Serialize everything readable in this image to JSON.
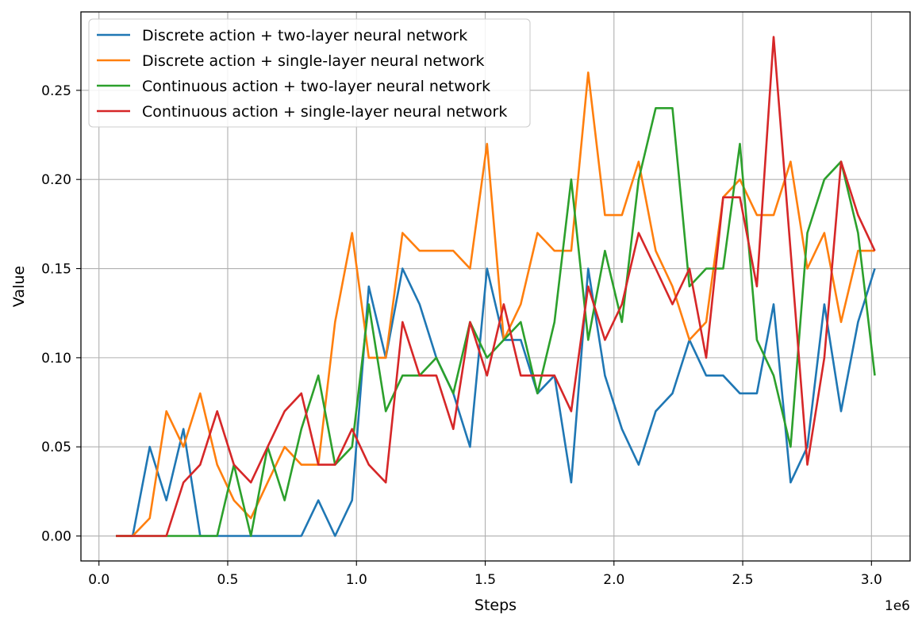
{
  "chart_data": {
    "type": "line",
    "xlabel": "Steps",
    "ylabel": "Value",
    "x_offset_label": "1e6",
    "xlim": [
      -0.07,
      3.15
    ],
    "ylim": [
      -0.014,
      0.294
    ],
    "x_ticks": [
      0.0,
      0.5,
      1.0,
      1.5,
      2.0,
      2.5,
      3.0
    ],
    "x_tick_labels": [
      "0.0",
      "0.5",
      "1.0",
      "1.5",
      "2.0",
      "2.5",
      "3.0"
    ],
    "y_ticks": [
      0.0,
      0.05,
      0.1,
      0.15,
      0.2,
      0.25
    ],
    "y_tick_labels": [
      "0.00",
      "0.05",
      "0.10",
      "0.15",
      "0.20",
      "0.25"
    ],
    "grid": true,
    "legend_position": "top-left",
    "x": [
      0.066,
      0.131,
      0.197,
      0.262,
      0.328,
      0.393,
      0.459,
      0.524,
      0.59,
      0.655,
      0.721,
      0.786,
      0.852,
      0.917,
      0.983,
      1.048,
      1.114,
      1.179,
      1.245,
      1.31,
      1.376,
      1.441,
      1.507,
      1.572,
      1.638,
      1.703,
      1.769,
      1.834,
      1.9,
      1.965,
      2.031,
      2.096,
      2.162,
      2.227,
      2.293,
      2.358,
      2.424,
      2.489,
      2.555,
      2.62,
      2.686,
      2.751,
      2.817,
      2.882,
      2.948,
      3.013
    ],
    "series": [
      {
        "name": "Discrete action + two-layer neural network",
        "color": "#1f77b4",
        "values": [
          0,
          0,
          0.05,
          0.02,
          0.06,
          0,
          0,
          0,
          0,
          0,
          0,
          0,
          0.02,
          0,
          0.02,
          0.14,
          0.1,
          0.15,
          0.13,
          0.1,
          0.08,
          0.05,
          0.15,
          0.11,
          0.11,
          0.08,
          0.09,
          0.03,
          0.15,
          0.09,
          0.06,
          0.04,
          0.07,
          0.08,
          0.11,
          0.09,
          0.09,
          0.08,
          0.08,
          0.13,
          0.03,
          0.05,
          0.13,
          0.07,
          0.12,
          0.15
        ]
      },
      {
        "name": "Discrete action + single-layer neural network",
        "color": "#ff7f0e",
        "values": [
          0,
          0,
          0.01,
          0.07,
          0.05,
          0.08,
          0.04,
          0.02,
          0.01,
          0.03,
          0.05,
          0.04,
          0.04,
          0.12,
          0.17,
          0.1,
          0.1,
          0.17,
          0.16,
          0.16,
          0.16,
          0.15,
          0.22,
          0.11,
          0.13,
          0.17,
          0.16,
          0.16,
          0.26,
          0.18,
          0.18,
          0.21,
          0.16,
          0.14,
          0.11,
          0.12,
          0.19,
          0.2,
          0.18,
          0.18,
          0.21,
          0.15,
          0.17,
          0.12,
          0.16,
          0.16
        ]
      },
      {
        "name": "Continuous action + two-layer neural network",
        "color": "#2ca02c",
        "values": [
          0,
          0,
          0,
          0,
          0,
          0,
          0,
          0.04,
          0,
          0.05,
          0.02,
          0.06,
          0.09,
          0.04,
          0.05,
          0.13,
          0.07,
          0.09,
          0.09,
          0.1,
          0.08,
          0.12,
          0.1,
          0.11,
          0.12,
          0.08,
          0.12,
          0.2,
          0.11,
          0.16,
          0.12,
          0.2,
          0.24,
          0.24,
          0.14,
          0.15,
          0.15,
          0.22,
          0.11,
          0.09,
          0.05,
          0.17,
          0.2,
          0.21,
          0.17,
          0.09
        ]
      },
      {
        "name": "Continuous action + single-layer neural network",
        "color": "#d62728",
        "values": [
          0,
          0,
          0,
          0,
          0.03,
          0.04,
          0.07,
          0.04,
          0.03,
          0.05,
          0.07,
          0.08,
          0.04,
          0.04,
          0.06,
          0.04,
          0.03,
          0.12,
          0.09,
          0.09,
          0.06,
          0.12,
          0.09,
          0.13,
          0.09,
          0.09,
          0.09,
          0.07,
          0.14,
          0.11,
          0.13,
          0.17,
          0.15,
          0.13,
          0.15,
          0.1,
          0.19,
          0.19,
          0.14,
          0.28,
          0.16,
          0.04,
          0.1,
          0.21,
          0.18,
          0.16
        ]
      }
    ]
  }
}
